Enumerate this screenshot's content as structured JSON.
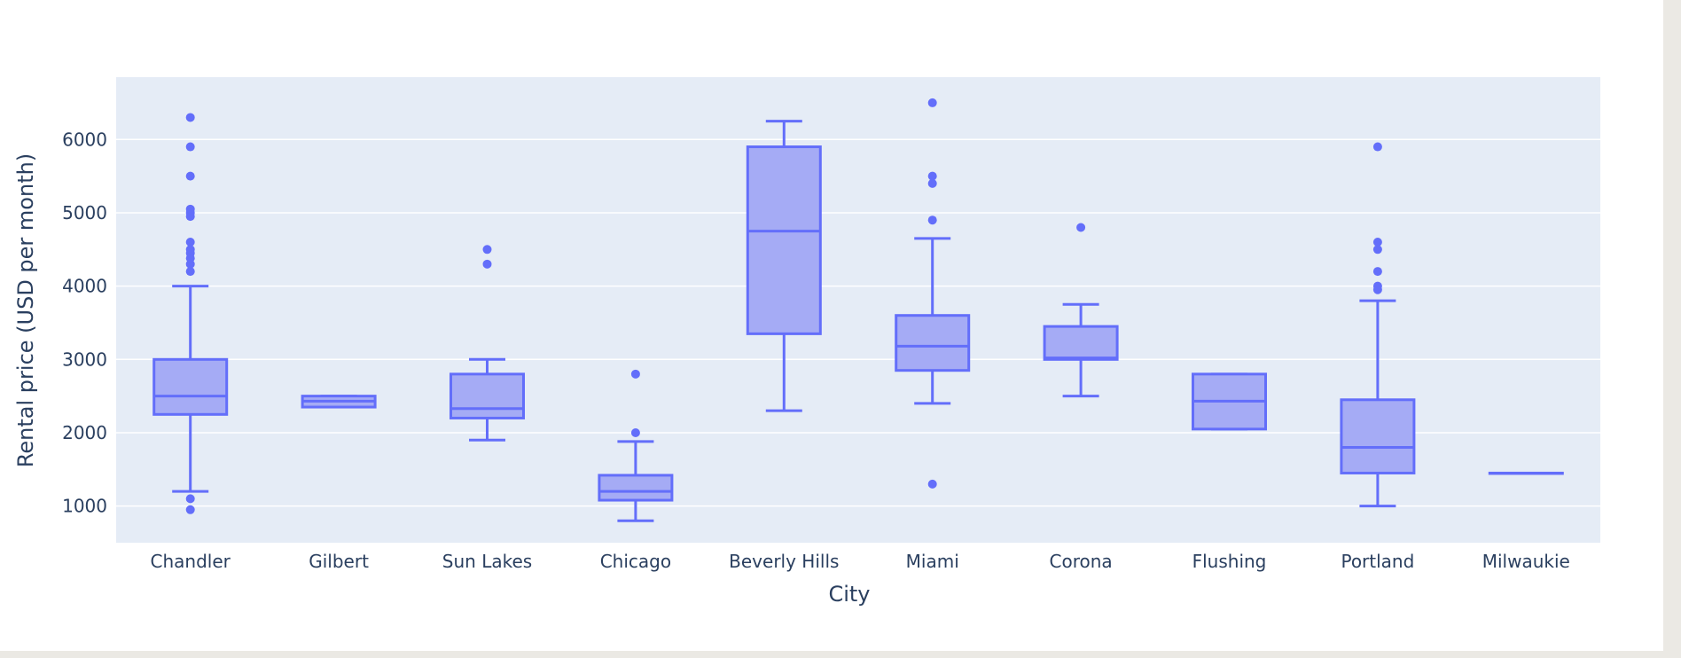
{
  "chart_data": {
    "type": "box",
    "title": "",
    "xlabel": "City",
    "ylabel": "Rental price (USD per month)",
    "ylim": [
      500,
      6850
    ],
    "yticks": [
      1000,
      2000,
      3000,
      4000,
      5000,
      6000
    ],
    "grid": true,
    "legend": "none",
    "colors": {
      "plot_bg": "#e5ecf6",
      "box_line": "#636efa",
      "box_fill": "#a5abf5",
      "grid": "#ffffff",
      "text": "#2a3f5f"
    },
    "categories": [
      "Chandler",
      "Gilbert",
      "Sun Lakes",
      "Chicago",
      "Beverly Hills",
      "Miami",
      "Corona",
      "Flushing",
      "Portland",
      "Milwaukie"
    ],
    "boxes": [
      {
        "category": "Chandler",
        "lower_fence": 1200,
        "q1": 2250,
        "median": 2500,
        "q3": 3000,
        "upper_fence": 4000,
        "outliers": [
          950,
          1100,
          4200,
          4300,
          4380,
          4450,
          4500,
          4600,
          4950,
          5000,
          5050,
          5500,
          5900,
          6300
        ]
      },
      {
        "category": "Gilbert",
        "lower_fence": 2350,
        "q1": 2350,
        "median": 2430,
        "q3": 2500,
        "upper_fence": 2500,
        "outliers": []
      },
      {
        "category": "Sun Lakes",
        "lower_fence": 1900,
        "q1": 2200,
        "median": 2330,
        "q3": 2800,
        "upper_fence": 3000,
        "outliers": [
          4300,
          4500
        ]
      },
      {
        "category": "Chicago",
        "lower_fence": 800,
        "q1": 1080,
        "median": 1200,
        "q3": 1420,
        "upper_fence": 1880,
        "outliers": [
          2000,
          2800
        ]
      },
      {
        "category": "Beverly Hills",
        "lower_fence": 2300,
        "q1": 3350,
        "median": 4750,
        "q3": 5900,
        "upper_fence": 6250,
        "outliers": []
      },
      {
        "category": "Miami",
        "lower_fence": 2400,
        "q1": 2850,
        "median": 3180,
        "q3": 3600,
        "upper_fence": 4650,
        "outliers": [
          1300,
          4900,
          5400,
          5500,
          6500
        ]
      },
      {
        "category": "Corona",
        "lower_fence": 2500,
        "q1": 3000,
        "median": 3020,
        "q3": 3450,
        "upper_fence": 3750,
        "outliers": [
          4800
        ]
      },
      {
        "category": "Flushing",
        "lower_fence": 2050,
        "q1": 2050,
        "median": 2430,
        "q3": 2800,
        "upper_fence": 2800,
        "outliers": []
      },
      {
        "category": "Portland",
        "lower_fence": 1000,
        "q1": 1450,
        "median": 1800,
        "q3": 2450,
        "upper_fence": 3800,
        "outliers": [
          3950,
          4000,
          4200,
          4500,
          4600,
          5900
        ]
      },
      {
        "category": "Milwaukie",
        "lower_fence": 1450,
        "q1": 1450,
        "median": 1450,
        "q3": 1450,
        "upper_fence": 1450,
        "outliers": []
      }
    ]
  }
}
